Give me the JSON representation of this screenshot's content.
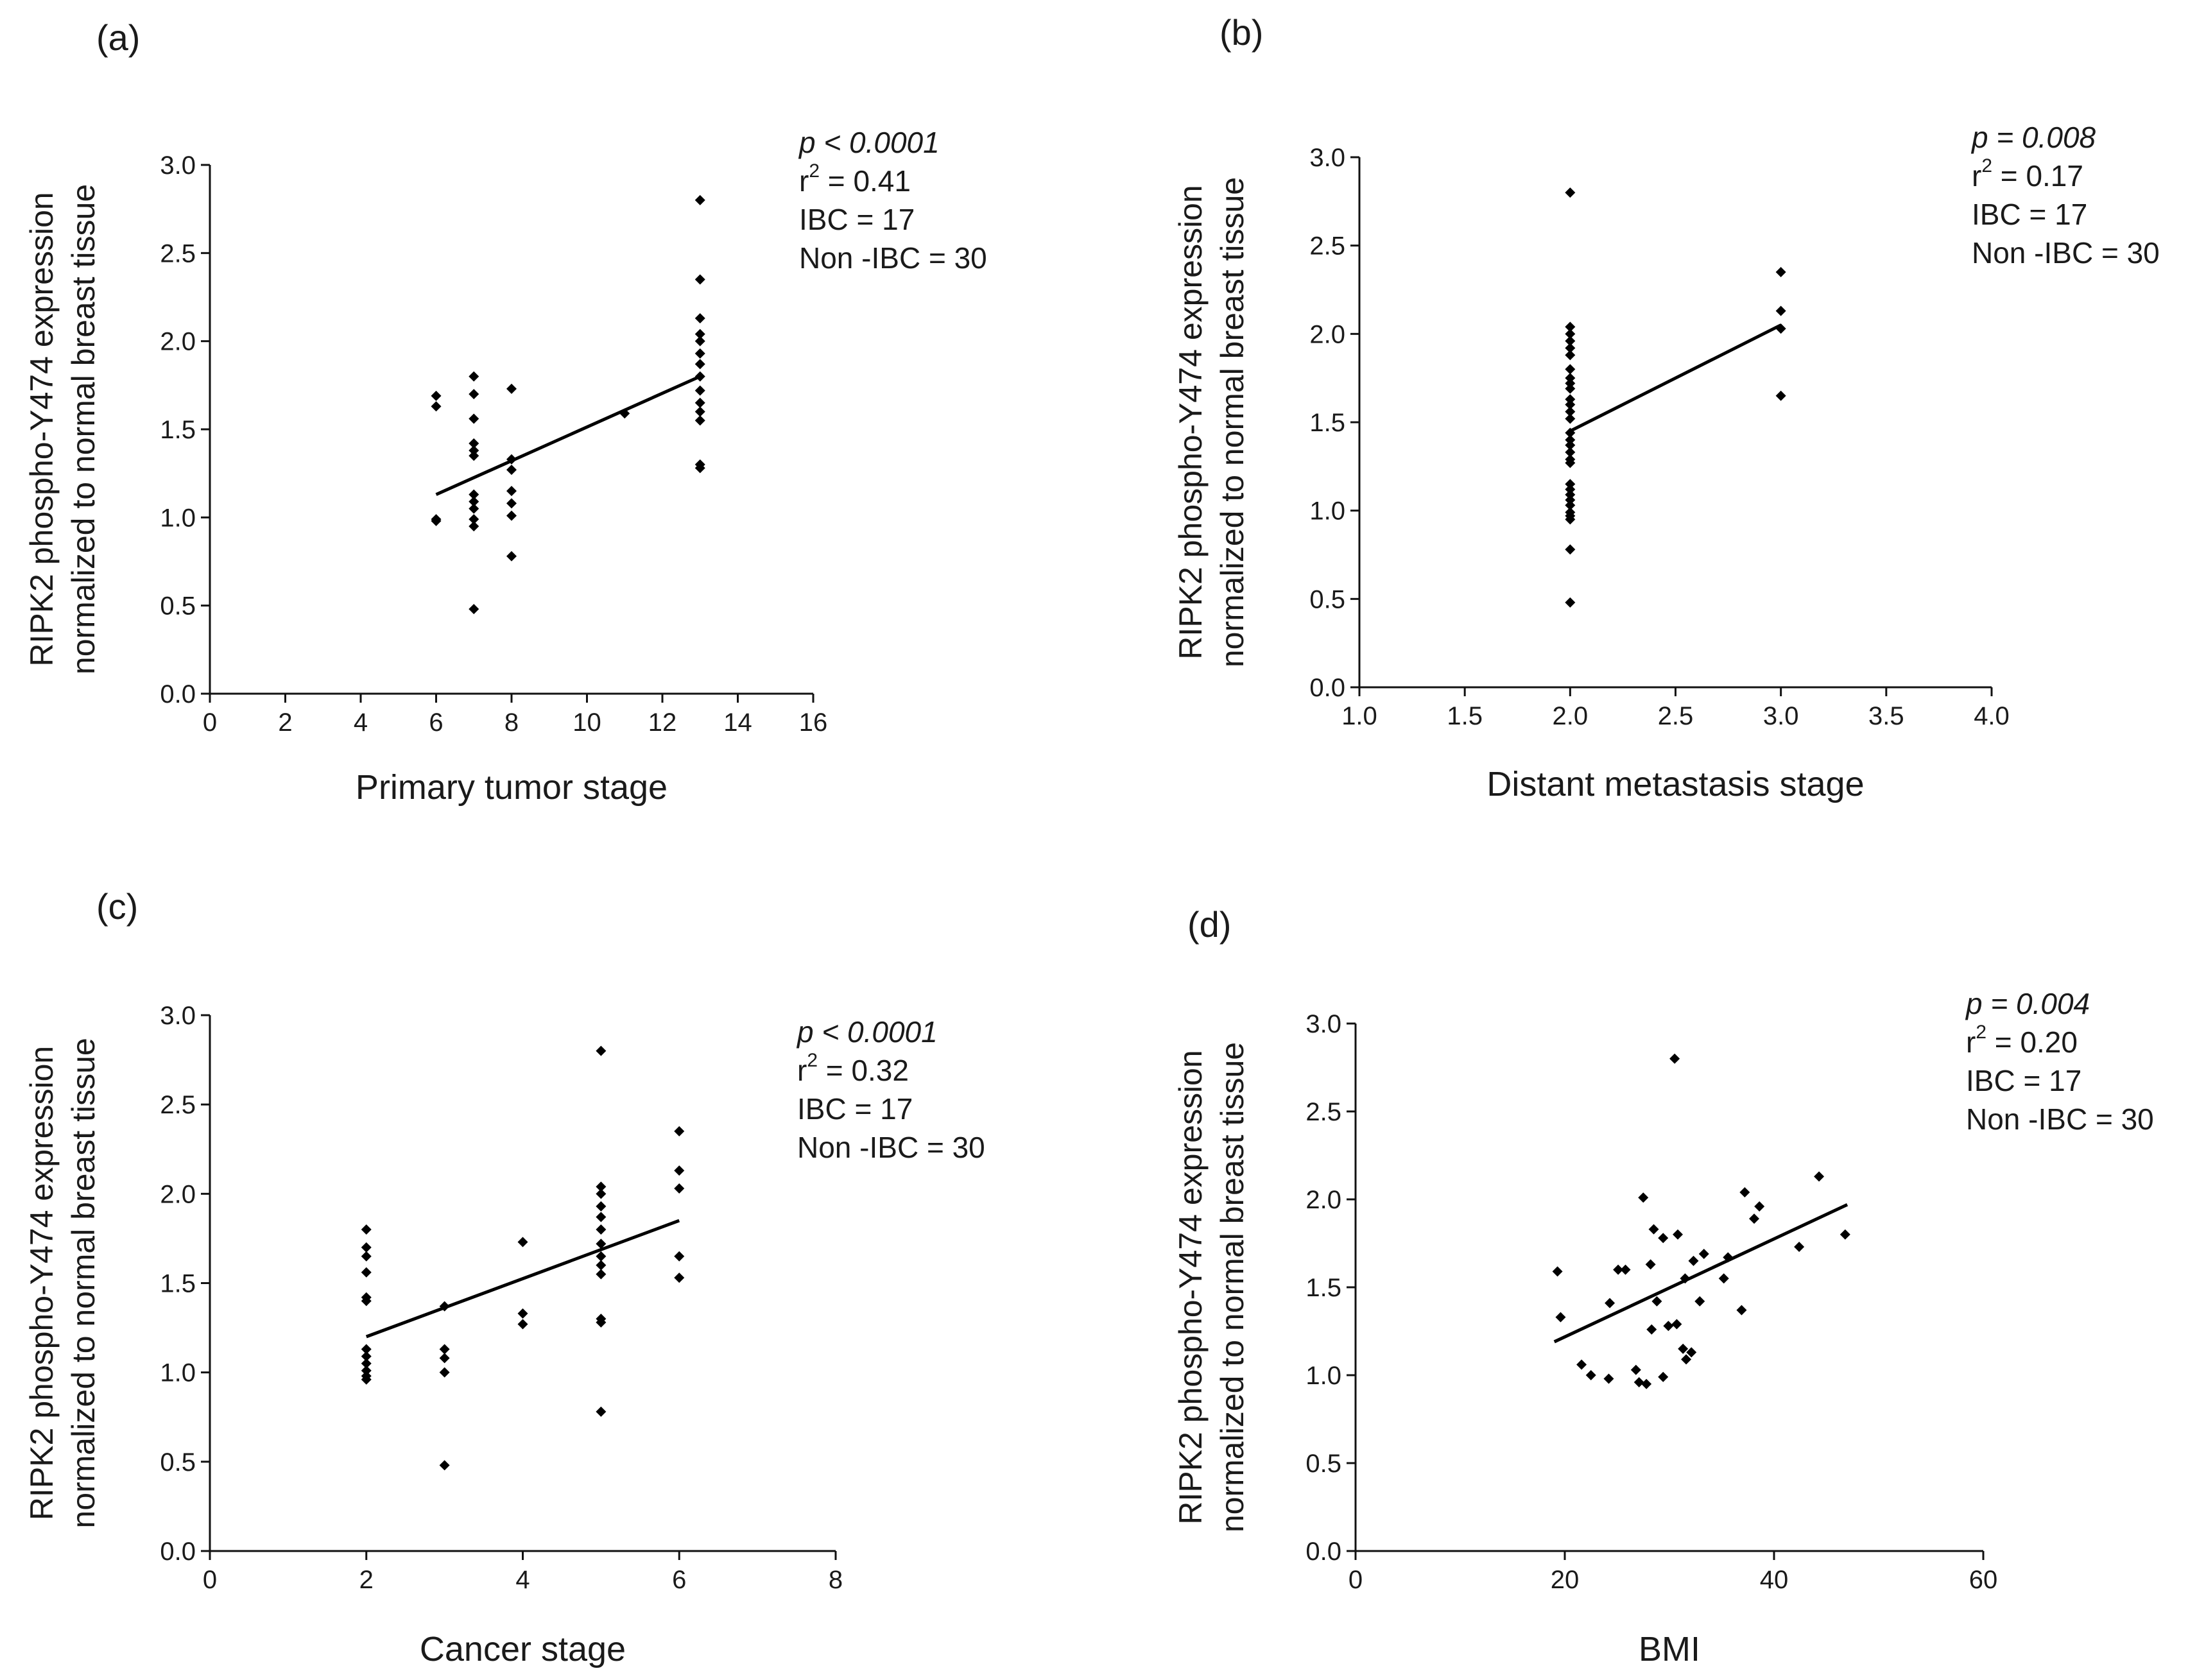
{
  "chart_data": [
    {
      "type": "scatter",
      "panel": "(a)",
      "xlabel": "Primary tumor stage",
      "ylabel": [
        "RIPK2 phospho-Y474 expression",
        "normalized to normal breast tissue"
      ],
      "xlim": [
        0,
        16
      ],
      "ylim": [
        0,
        3.0
      ],
      "xticks": [
        "0",
        "2",
        "4",
        "6",
        "8",
        "10",
        "12",
        "14",
        "16"
      ],
      "yticks": [
        "0.0",
        "0.5",
        "1.0",
        "1.5",
        "2.0",
        "2.5",
        "3.0"
      ],
      "stats": {
        "p_label": "p < 0.0001",
        "r2_prefix": "r",
        "r2_exp": "2",
        "r2_value": " = 0.41",
        "ibc": "IBC = 17",
        "non_ibc": "Non -IBC = 30"
      },
      "fit": {
        "x": [
          6,
          13
        ],
        "y": [
          1.13,
          1.8
        ]
      },
      "points": [
        {
          "x": 6,
          "y": 1.69
        },
        {
          "x": 6,
          "y": 1.63
        },
        {
          "x": 6,
          "y": 0.99
        },
        {
          "x": 6,
          "y": 0.98
        },
        {
          "x": 7,
          "y": 1.8
        },
        {
          "x": 7,
          "y": 1.7
        },
        {
          "x": 7,
          "y": 1.56
        },
        {
          "x": 7,
          "y": 1.42
        },
        {
          "x": 7,
          "y": 1.38
        },
        {
          "x": 7,
          "y": 1.35
        },
        {
          "x": 7,
          "y": 1.13
        },
        {
          "x": 7,
          "y": 1.09
        },
        {
          "x": 7,
          "y": 1.05
        },
        {
          "x": 7,
          "y": 0.99
        },
        {
          "x": 7,
          "y": 0.95
        },
        {
          "x": 7,
          "y": 0.48
        },
        {
          "x": 8,
          "y": 1.73
        },
        {
          "x": 8,
          "y": 1.33
        },
        {
          "x": 8,
          "y": 1.27
        },
        {
          "x": 8,
          "y": 1.15
        },
        {
          "x": 8,
          "y": 1.08
        },
        {
          "x": 8,
          "y": 1.01
        },
        {
          "x": 8,
          "y": 0.78
        },
        {
          "x": 11,
          "y": 1.59
        },
        {
          "x": 13,
          "y": 2.8
        },
        {
          "x": 13,
          "y": 2.35
        },
        {
          "x": 13,
          "y": 2.13
        },
        {
          "x": 13,
          "y": 2.04
        },
        {
          "x": 13,
          "y": 2.0
        },
        {
          "x": 13,
          "y": 1.93
        },
        {
          "x": 13,
          "y": 1.87
        },
        {
          "x": 13,
          "y": 1.8
        },
        {
          "x": 13,
          "y": 1.72
        },
        {
          "x": 13,
          "y": 1.65
        },
        {
          "x": 13,
          "y": 1.6
        },
        {
          "x": 13,
          "y": 1.55
        },
        {
          "x": 13,
          "y": 1.3
        },
        {
          "x": 13,
          "y": 1.28
        }
      ]
    },
    {
      "type": "scatter",
      "panel": "(b)",
      "xlabel": "Distant metastasis stage",
      "ylabel": [
        "RIPK2 phospho-Y474 expression",
        "normalized to normal breast tissue"
      ],
      "xlim": [
        1.0,
        4.0
      ],
      "ylim": [
        0,
        3.0
      ],
      "xticks": [
        "1.0",
        "1.5",
        "2.0",
        "2.5",
        "3.0",
        "3.5",
        "4.0"
      ],
      "yticks": [
        "0.0",
        "0.5",
        "1.0",
        "1.5",
        "2.0",
        "2.5",
        "3.0"
      ],
      "stats": {
        "p_label": "p = 0.008",
        "r2_prefix": "r",
        "r2_exp": "2",
        "r2_value": " = 0.17",
        "ibc": "IBC = 17",
        "non_ibc": "Non -IBC = 30"
      },
      "fit": {
        "x": [
          2.0,
          3.0
        ],
        "y": [
          1.45,
          2.05
        ]
      },
      "points": [
        {
          "x": 2,
          "y": 2.8
        },
        {
          "x": 2,
          "y": 2.04
        },
        {
          "x": 2,
          "y": 2.0
        },
        {
          "x": 2,
          "y": 1.96
        },
        {
          "x": 2,
          "y": 1.92
        },
        {
          "x": 2,
          "y": 1.88
        },
        {
          "x": 2,
          "y": 1.8
        },
        {
          "x": 2,
          "y": 1.75
        },
        {
          "x": 2,
          "y": 1.72
        },
        {
          "x": 2,
          "y": 1.69
        },
        {
          "x": 2,
          "y": 1.63
        },
        {
          "x": 2,
          "y": 1.6
        },
        {
          "x": 2,
          "y": 1.56
        },
        {
          "x": 2,
          "y": 1.52
        },
        {
          "x": 2,
          "y": 1.44
        },
        {
          "x": 2,
          "y": 1.4
        },
        {
          "x": 2,
          "y": 1.37
        },
        {
          "x": 2,
          "y": 1.33
        },
        {
          "x": 2,
          "y": 1.29
        },
        {
          "x": 2,
          "y": 1.27
        },
        {
          "x": 2,
          "y": 1.15
        },
        {
          "x": 2,
          "y": 1.12
        },
        {
          "x": 2,
          "y": 1.09
        },
        {
          "x": 2,
          "y": 1.06
        },
        {
          "x": 2,
          "y": 1.03
        },
        {
          "x": 2,
          "y": 0.99
        },
        {
          "x": 2,
          "y": 0.97
        },
        {
          "x": 2,
          "y": 0.95
        },
        {
          "x": 2,
          "y": 0.78
        },
        {
          "x": 2,
          "y": 0.48
        },
        {
          "x": 3,
          "y": 2.35
        },
        {
          "x": 3,
          "y": 2.13
        },
        {
          "x": 3,
          "y": 2.03
        },
        {
          "x": 3,
          "y": 1.65
        }
      ]
    },
    {
      "type": "scatter",
      "panel": "(c)",
      "xlabel": "Cancer stage",
      "ylabel": [
        "RIPK2 phospho-Y474 expression",
        "normalized to normal breast tissue"
      ],
      "xlim": [
        0,
        8
      ],
      "ylim": [
        0,
        3.0
      ],
      "xticks": [
        "0",
        "2",
        "4",
        "6",
        "8"
      ],
      "yticks": [
        "0.0",
        "0.5",
        "1.0",
        "1.5",
        "2.0",
        "2.5",
        "3.0"
      ],
      "stats": {
        "p_label": "p < 0.0001",
        "r2_prefix": "r",
        "r2_exp": "2",
        "r2_value": " = 0.32",
        "ibc": "IBC = 17",
        "non_ibc": "Non -IBC = 30"
      },
      "fit": {
        "x": [
          2,
          6
        ],
        "y": [
          1.2,
          1.85
        ]
      },
      "points": [
        {
          "x": 2,
          "y": 1.8
        },
        {
          "x": 2,
          "y": 1.7
        },
        {
          "x": 2,
          "y": 1.65
        },
        {
          "x": 2,
          "y": 1.56
        },
        {
          "x": 2,
          "y": 1.42
        },
        {
          "x": 2,
          "y": 1.4
        },
        {
          "x": 2,
          "y": 1.13
        },
        {
          "x": 2,
          "y": 1.09
        },
        {
          "x": 2,
          "y": 1.05
        },
        {
          "x": 2,
          "y": 1.01
        },
        {
          "x": 2,
          "y": 0.98
        },
        {
          "x": 2,
          "y": 0.96
        },
        {
          "x": 3,
          "y": 1.37
        },
        {
          "x": 3,
          "y": 1.13
        },
        {
          "x": 3,
          "y": 1.08
        },
        {
          "x": 3,
          "y": 1.0
        },
        {
          "x": 3,
          "y": 0.48
        },
        {
          "x": 4,
          "y": 1.73
        },
        {
          "x": 4,
          "y": 1.33
        },
        {
          "x": 4,
          "y": 1.27
        },
        {
          "x": 5,
          "y": 2.8
        },
        {
          "x": 5,
          "y": 2.04
        },
        {
          "x": 5,
          "y": 2.0
        },
        {
          "x": 5,
          "y": 1.93
        },
        {
          "x": 5,
          "y": 1.87
        },
        {
          "x": 5,
          "y": 1.8
        },
        {
          "x": 5,
          "y": 1.72
        },
        {
          "x": 5,
          "y": 1.65
        },
        {
          "x": 5,
          "y": 1.6
        },
        {
          "x": 5,
          "y": 1.55
        },
        {
          "x": 5,
          "y": 1.3
        },
        {
          "x": 5,
          "y": 1.28
        },
        {
          "x": 5,
          "y": 0.78
        },
        {
          "x": 6,
          "y": 2.35
        },
        {
          "x": 6,
          "y": 2.13
        },
        {
          "x": 6,
          "y": 2.03
        },
        {
          "x": 6,
          "y": 1.65
        },
        {
          "x": 6,
          "y": 1.53
        }
      ]
    },
    {
      "type": "scatter",
      "panel": "(d)",
      "xlabel": "BMI",
      "ylabel": [
        "RIPK2 phospho-Y474 expression",
        "normalized to normal breast tissue"
      ],
      "xlim": [
        0,
        60
      ],
      "ylim": [
        0,
        3.0
      ],
      "xticks": [
        "0",
        "20",
        "40",
        "60"
      ],
      "yticks": [
        "0.0",
        "0.5",
        "1.0",
        "1.5",
        "2.0",
        "2.5",
        "3.0"
      ],
      "stats": {
        "p_label": "p = 0.004",
        "r2_prefix": "r",
        "r2_exp": "2",
        "r2_value": " = 0.20",
        "ibc": "IBC = 17",
        "non_ibc": "Non -IBC = 30"
      },
      "fit": {
        "x": [
          19,
          47
        ],
        "y": [
          1.19,
          1.97
        ]
      },
      "points": [
        {
          "x": 19.3,
          "y": 1.59
        },
        {
          "x": 19.6,
          "y": 1.33
        },
        {
          "x": 21.6,
          "y": 1.06
        },
        {
          "x": 22.5,
          "y": 1.0
        },
        {
          "x": 24.2,
          "y": 0.98
        },
        {
          "x": 24.3,
          "y": 1.41
        },
        {
          "x": 25.1,
          "y": 1.6
        },
        {
          "x": 25.8,
          "y": 1.6
        },
        {
          "x": 26.8,
          "y": 1.03
        },
        {
          "x": 27.1,
          "y": 0.96
        },
        {
          "x": 27.5,
          "y": 2.01
        },
        {
          "x": 27.8,
          "y": 0.95
        },
        {
          "x": 28.2,
          "y": 1.63
        },
        {
          "x": 28.3,
          "y": 1.26
        },
        {
          "x": 28.5,
          "y": 1.83
        },
        {
          "x": 28.8,
          "y": 1.42
        },
        {
          "x": 29.4,
          "y": 1.78
        },
        {
          "x": 29.4,
          "y": 0.99
        },
        {
          "x": 29.9,
          "y": 1.28
        },
        {
          "x": 30.5,
          "y": 2.8
        },
        {
          "x": 30.7,
          "y": 1.29
        },
        {
          "x": 30.8,
          "y": 1.8
        },
        {
          "x": 31.3,
          "y": 1.15
        },
        {
          "x": 31.5,
          "y": 1.55
        },
        {
          "x": 31.6,
          "y": 1.09
        },
        {
          "x": 32.1,
          "y": 1.13
        },
        {
          "x": 32.3,
          "y": 1.65
        },
        {
          "x": 32.9,
          "y": 1.42
        },
        {
          "x": 33.3,
          "y": 1.69
        },
        {
          "x": 35.2,
          "y": 1.55
        },
        {
          "x": 35.6,
          "y": 1.67
        },
        {
          "x": 36.9,
          "y": 1.37
        },
        {
          "x": 37.2,
          "y": 2.04
        },
        {
          "x": 38.1,
          "y": 1.89
        },
        {
          "x": 38.6,
          "y": 1.96
        },
        {
          "x": 42.4,
          "y": 1.73
        },
        {
          "x": 44.3,
          "y": 2.13
        },
        {
          "x": 46.8,
          "y": 1.8
        }
      ]
    }
  ]
}
